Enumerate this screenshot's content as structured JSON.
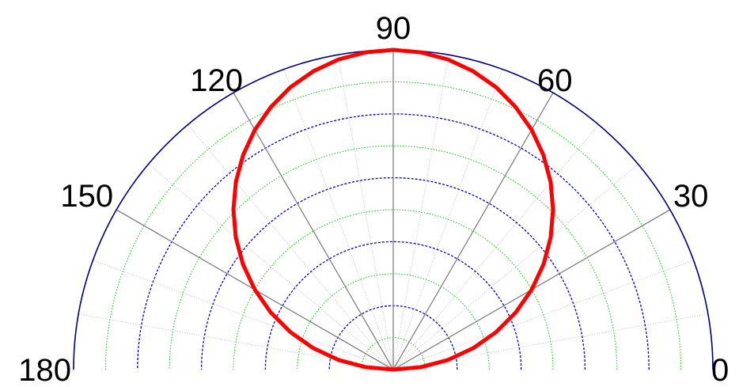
{
  "chart_data": {
    "type": "line",
    "projection": "polar-half",
    "title": "",
    "angle_unit": "degrees",
    "angle_range": [
      0,
      180
    ],
    "radial_range": [
      0,
      1
    ],
    "angle_ticks": [
      "0",
      "30",
      "60",
      "90",
      "120",
      "150",
      "180"
    ],
    "angle_tick_values": [
      0,
      30,
      60,
      90,
      120,
      150,
      180
    ],
    "radial_rings": {
      "dashed_blue": [
        0.2,
        0.4,
        0.6,
        0.8
      ],
      "dotted_green": [
        0.1,
        0.3,
        0.5,
        0.7,
        0.9
      ]
    },
    "spokes_major_deg": [
      30,
      60,
      90,
      120,
      150
    ],
    "spokes_minor_deg": [
      10,
      20,
      40,
      50,
      70,
      80,
      100,
      110,
      130,
      140,
      160,
      170
    ],
    "grid": true,
    "series": [
      {
        "color": "#ff0000",
        "theta": [
          0,
          5,
          10,
          15,
          20,
          25,
          30,
          35,
          40,
          45,
          50,
          55,
          60,
          65,
          70,
          75,
          80,
          85,
          90,
          95,
          100,
          105,
          110,
          115,
          120,
          125,
          130,
          135,
          140,
          145,
          150,
          155,
          160,
          165,
          170,
          175,
          180
        ],
        "r": [
          0.0,
          0.087,
          0.174,
          0.259,
          0.342,
          0.423,
          0.5,
          0.574,
          0.643,
          0.707,
          0.766,
          0.819,
          0.866,
          0.906,
          0.94,
          0.966,
          0.985,
          0.996,
          1.0,
          0.996,
          0.985,
          0.966,
          0.94,
          0.906,
          0.866,
          0.819,
          0.766,
          0.707,
          0.643,
          0.574,
          0.5,
          0.423,
          0.342,
          0.259,
          0.174,
          0.087,
          0.0
        ]
      }
    ],
    "colors": {
      "outer_arc": "#000080",
      "major_spoke": "#808080",
      "minor_spoke": "#b0b0b0",
      "ring_dashed": "#0000cc",
      "ring_dotted": "#00cc00",
      "series": "#ff0000"
    }
  }
}
